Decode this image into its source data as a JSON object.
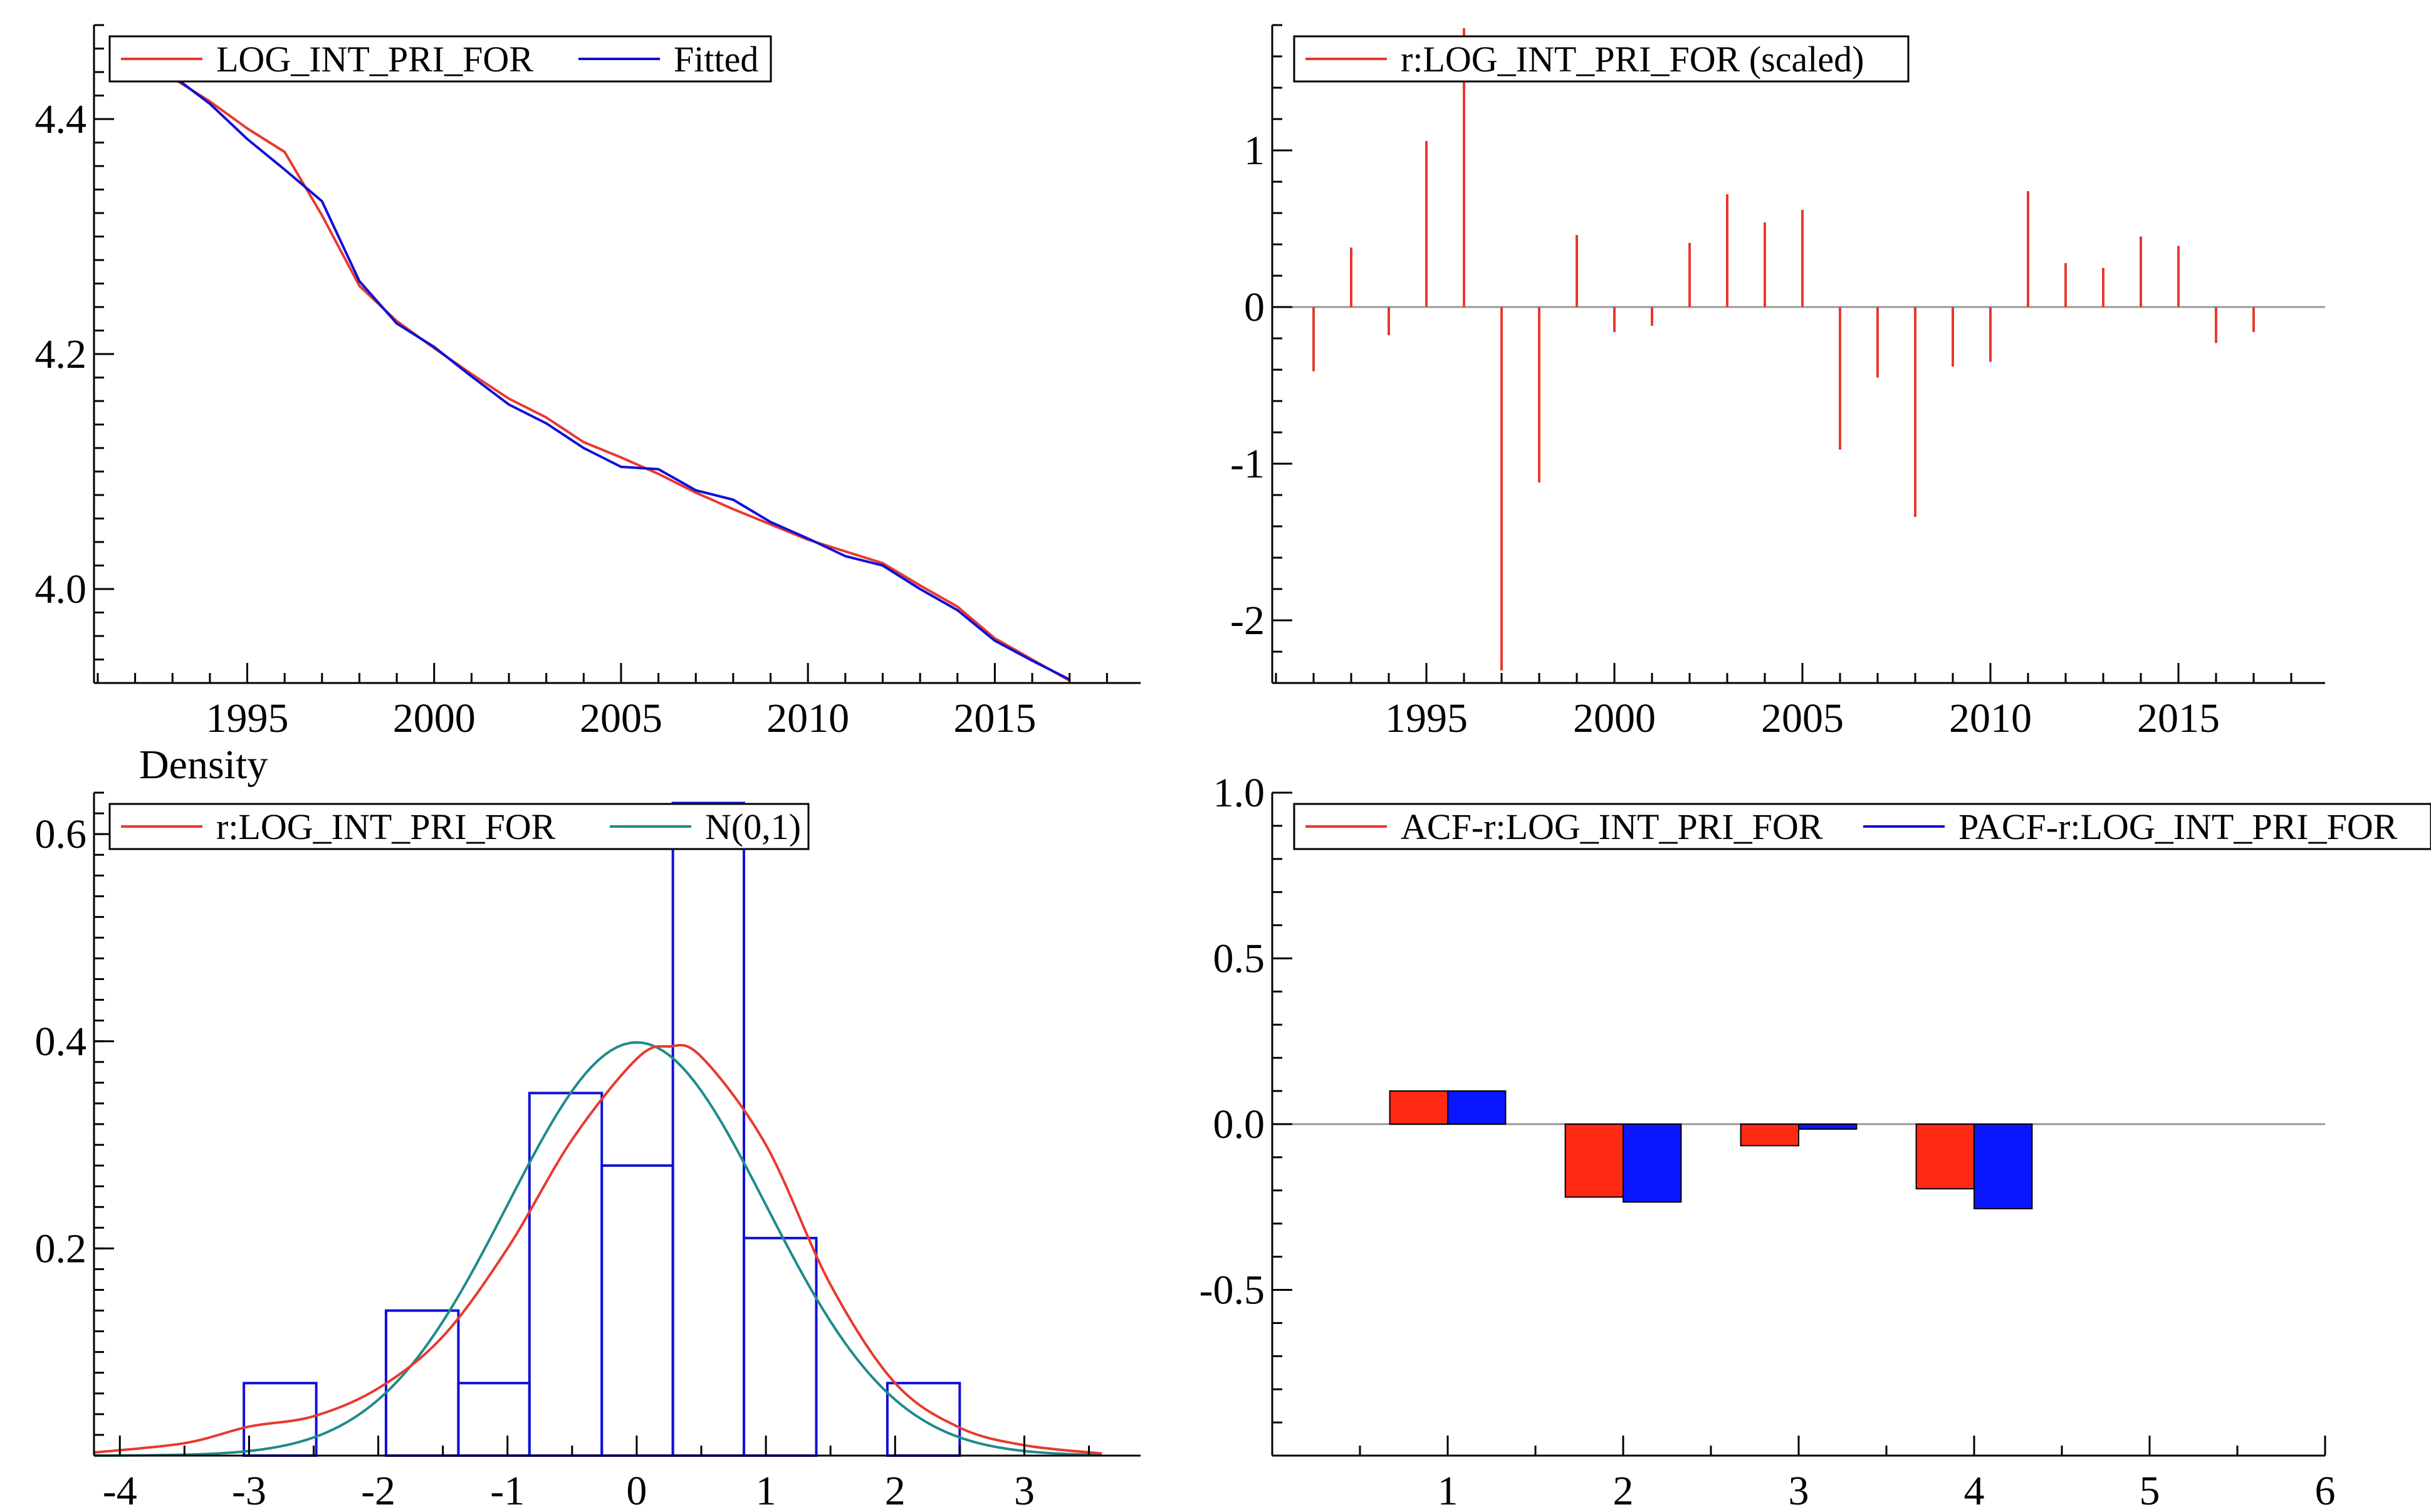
{
  "colors": {
    "red": "#e8392f",
    "blue": "#1010d8",
    "teal": "#1f8a8a",
    "bar_red": "#ff2a14",
    "bar_blue": "#0a16ff",
    "zero_line": "#999999"
  },
  "chart_data": [
    {
      "id": "fit",
      "type": "line",
      "title": "",
      "xlabel": "",
      "ylabel": "",
      "xlim": [
        1990.9,
        2018.9
      ],
      "ylim": [
        3.92,
        4.48
      ],
      "xticks": [
        1995,
        2000,
        2005,
        2010,
        2015
      ],
      "xtick_labels": [
        "1995",
        "2000",
        "2005",
        "2010",
        "2015"
      ],
      "yticks": [
        4.0,
        4.2,
        4.4
      ],
      "ytick_labels": [
        "4.0",
        "4.2",
        "4.4"
      ],
      "legend": [
        {
          "label": "LOG_INT_PRI_FOR",
          "color": "red"
        },
        {
          "label": "Fitted",
          "color": "blue"
        }
      ],
      "x": [
        1992,
        1993,
        1994,
        1995,
        1996,
        1997,
        1998,
        1999,
        2000,
        2001,
        2002,
        2003,
        2004,
        2005,
        2006,
        2007,
        2008,
        2009,
        2010,
        2011,
        2012,
        2013,
        2014,
        2015,
        2016,
        2017
      ],
      "series": [
        {
          "name": "LOG_INT_PRI_FOR",
          "color": "red",
          "values": [
            4.455,
            4.435,
            4.415,
            4.392,
            4.372,
            4.318,
            4.258,
            4.228,
            4.205,
            4.183,
            4.162,
            4.146,
            4.125,
            4.112,
            4.098,
            4.082,
            4.068,
            4.055,
            4.042,
            4.032,
            4.022,
            4.003,
            3.985,
            3.958,
            3.94,
            3.922
          ]
        },
        {
          "name": "Fitted",
          "color": "blue",
          "values": [
            4.46,
            4.437,
            4.413,
            4.383,
            4.357,
            4.33,
            4.262,
            4.226,
            4.206,
            4.181,
            4.157,
            4.141,
            4.12,
            4.104,
            4.102,
            4.084,
            4.076,
            4.057,
            4.043,
            4.028,
            4.02,
            4.0,
            3.982,
            3.956,
            3.939,
            3.923
          ]
        }
      ]
    },
    {
      "id": "resid",
      "type": "bar",
      "title": "",
      "xlabel": "",
      "ylabel": "",
      "xlim": [
        1990.9,
        2018.9
      ],
      "ylim": [
        -2.4,
        1.8
      ],
      "xticks": [
        1995,
        2000,
        2005,
        2010,
        2015
      ],
      "xtick_labels": [
        "1995",
        "2000",
        "2005",
        "2010",
        "2015"
      ],
      "yticks": [
        -2,
        -1,
        0,
        1
      ],
      "ytick_labels": [
        "-2",
        "-1",
        "0",
        "1"
      ],
      "legend": [
        {
          "label": "r:LOG_INT_PRI_FOR (scaled)",
          "color": "red"
        }
      ],
      "x": [
        1992,
        1993,
        1994,
        1995,
        1996,
        1997,
        1998,
        1999,
        2000,
        2001,
        2002,
        2003,
        2004,
        2005,
        2006,
        2007,
        2008,
        2009,
        2010,
        2011,
        2012,
        2013,
        2014,
        2015,
        2016,
        2017
      ],
      "values": [
        -0.41,
        0.38,
        -0.18,
        1.06,
        1.78,
        -2.32,
        -1.12,
        0.46,
        -0.16,
        -0.12,
        0.41,
        0.72,
        0.54,
        0.62,
        -0.91,
        -0.45,
        -1.34,
        -0.38,
        -0.35,
        0.74,
        0.28,
        0.25,
        0.45,
        0.39,
        -0.23,
        -0.16
      ]
    },
    {
      "id": "density",
      "type": "histogram",
      "title": "Density",
      "xlabel": "",
      "ylabel": "Density",
      "xlim": [
        -4.2,
        3.9
      ],
      "ylim": [
        0,
        0.64
      ],
      "xticks": [
        -4,
        -3,
        -2,
        -1,
        0,
        1,
        2,
        3
      ],
      "xtick_labels": [
        "-4",
        "-3",
        "-2",
        "-1",
        "0",
        "1",
        "2",
        "3"
      ],
      "yticks": [
        0.2,
        0.4,
        0.6
      ],
      "ytick_labels": [
        "0.2",
        "0.4",
        "0.6"
      ],
      "legend": [
        {
          "label": "r:LOG_INT_PRI_FOR",
          "color": "red"
        },
        {
          "label": "N(0,1)",
          "color": "teal"
        }
      ],
      "bins": [
        {
          "x0": -3.04,
          "x1": -2.48,
          "density": 0.07
        },
        {
          "x0": -1.94,
          "x1": -1.38,
          "density": 0.14
        },
        {
          "x0": -1.38,
          "x1": -0.83,
          "density": 0.07
        },
        {
          "x0": -0.83,
          "x1": -0.27,
          "density": 0.35
        },
        {
          "x0": -0.27,
          "x1": 0.28,
          "density": 0.28
        },
        {
          "x0": 0.28,
          "x1": 0.83,
          "density": 0.63
        },
        {
          "x0": 0.83,
          "x1": 1.39,
          "density": 0.21
        },
        {
          "x0": 1.94,
          "x1": 2.5,
          "density": 0.07
        }
      ],
      "kde": {
        "name": "r:LOG_INT_PRI_FOR",
        "color": "red",
        "x": [
          -4.2,
          -3.5,
          -3.0,
          -2.5,
          -2.0,
          -1.5,
          -1.0,
          -0.5,
          0.0,
          0.25,
          0.5,
          1.0,
          1.5,
          2.0,
          2.5,
          3.0,
          3.6
        ],
        "y": [
          0.003,
          0.012,
          0.028,
          0.038,
          0.065,
          0.115,
          0.2,
          0.305,
          0.383,
          0.395,
          0.385,
          0.3,
          0.165,
          0.07,
          0.027,
          0.01,
          0.002
        ]
      },
      "normal": {
        "name": "N(0,1)",
        "color": "teal",
        "mean": 0,
        "sd": 1
      }
    },
    {
      "id": "acf",
      "type": "bar",
      "title": "",
      "xlabel": "",
      "ylabel": "",
      "xlim": [
        0,
        6
      ],
      "ylim": [
        -1.0,
        1.0
      ],
      "xticks": [
        1,
        2,
        3,
        4,
        5,
        6
      ],
      "xtick_labels": [
        "1",
        "2",
        "3",
        "4",
        "5",
        "6"
      ],
      "yticks": [
        -0.5,
        0.0,
        0.5,
        1.0
      ],
      "ytick_labels": [
        "-0.5",
        "0.0",
        "0.5",
        "1.0"
      ],
      "legend": [
        {
          "label": "ACF-r:LOG_INT_PRI_FOR",
          "color": "red"
        },
        {
          "label": "PACF-r:LOG_INT_PRI_FOR",
          "color": "blue"
        }
      ],
      "categories": [
        1,
        2,
        3,
        4
      ],
      "series": [
        {
          "name": "ACF-r:LOG_INT_PRI_FOR",
          "color": "bar_red",
          "values": [
            0.1,
            -0.22,
            -0.065,
            -0.195
          ]
        },
        {
          "name": "PACF-r:LOG_INT_PRI_FOR",
          "color": "bar_blue",
          "values": [
            0.1,
            -0.235,
            -0.015,
            -0.255
          ]
        }
      ]
    }
  ]
}
